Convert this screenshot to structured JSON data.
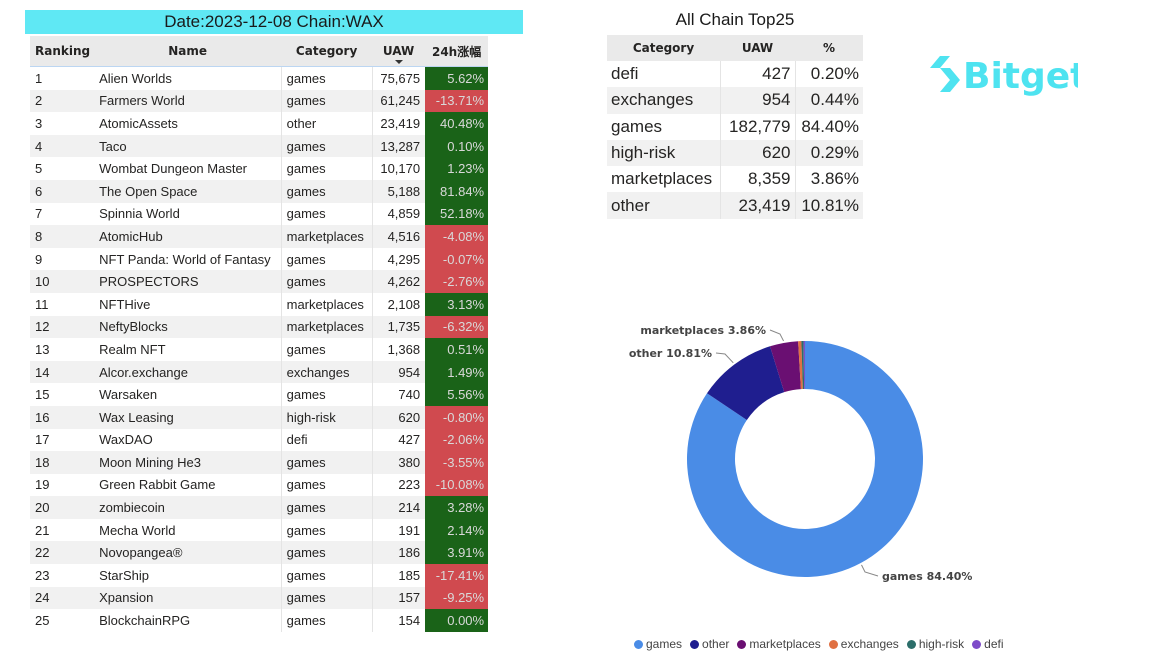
{
  "header": {
    "date_chain": "Date:2023-12-08 Chain:WAX"
  },
  "ranking_table": {
    "columns": [
      "Ranking",
      "Name",
      "Category",
      "UAW",
      "24h涨幅"
    ],
    "rows": [
      {
        "rank": "1",
        "name": "Alien Worlds",
        "category": "games",
        "uaw": "75,675",
        "change": "5.62%"
      },
      {
        "rank": "2",
        "name": "Farmers World",
        "category": "games",
        "uaw": "61,245",
        "change": "-13.71%"
      },
      {
        "rank": "3",
        "name": "AtomicAssets",
        "category": "other",
        "uaw": "23,419",
        "change": "40.48%"
      },
      {
        "rank": "4",
        "name": "Taco",
        "category": "games",
        "uaw": "13,287",
        "change": "0.10%"
      },
      {
        "rank": "5",
        "name": "Wombat Dungeon Master",
        "category": "games",
        "uaw": "10,170",
        "change": "1.23%"
      },
      {
        "rank": "6",
        "name": "The Open Space",
        "category": "games",
        "uaw": "5,188",
        "change": "81.84%"
      },
      {
        "rank": "7",
        "name": "Spinnia World",
        "category": "games",
        "uaw": "4,859",
        "change": "52.18%"
      },
      {
        "rank": "8",
        "name": "AtomicHub",
        "category": "marketplaces",
        "uaw": "4,516",
        "change": "-4.08%"
      },
      {
        "rank": "9",
        "name": "NFT Panda: World of Fantasy",
        "category": "games",
        "uaw": "4,295",
        "change": "-0.07%"
      },
      {
        "rank": "10",
        "name": "PROSPECTORS",
        "category": "games",
        "uaw": "4,262",
        "change": "-2.76%"
      },
      {
        "rank": "11",
        "name": "NFTHive",
        "category": "marketplaces",
        "uaw": "2,108",
        "change": "3.13%"
      },
      {
        "rank": "12",
        "name": "NeftyBlocks",
        "category": "marketplaces",
        "uaw": "1,735",
        "change": "-6.32%"
      },
      {
        "rank": "13",
        "name": "Realm NFT",
        "category": "games",
        "uaw": "1,368",
        "change": "0.51%"
      },
      {
        "rank": "14",
        "name": "Alcor.exchange",
        "category": "exchanges",
        "uaw": "954",
        "change": "1.49%"
      },
      {
        "rank": "15",
        "name": "Warsaken",
        "category": "games",
        "uaw": "740",
        "change": "5.56%"
      },
      {
        "rank": "16",
        "name": "Wax Leasing",
        "category": "high-risk",
        "uaw": "620",
        "change": "-0.80%"
      },
      {
        "rank": "17",
        "name": "WaxDAO",
        "category": "defi",
        "uaw": "427",
        "change": "-2.06%"
      },
      {
        "rank": "18",
        "name": "Moon Mining He3",
        "category": "games",
        "uaw": "380",
        "change": "-3.55%"
      },
      {
        "rank": "19",
        "name": "Green Rabbit Game",
        "category": "games",
        "uaw": "223",
        "change": "-10.08%"
      },
      {
        "rank": "20",
        "name": "zombiecoin",
        "category": "games",
        "uaw": "214",
        "change": "3.28%"
      },
      {
        "rank": "21",
        "name": "Mecha World",
        "category": "games",
        "uaw": "191",
        "change": "2.14%"
      },
      {
        "rank": "22",
        "name": "Novopangea®",
        "category": "games",
        "uaw": "186",
        "change": "3.91%"
      },
      {
        "rank": "23",
        "name": "StarShip",
        "category": "games",
        "uaw": "185",
        "change": "-17.41%"
      },
      {
        "rank": "24",
        "name": "Xpansion",
        "category": "games",
        "uaw": "157",
        "change": "-9.25%"
      },
      {
        "rank": "25",
        "name": "BlockchainRPG",
        "category": "games",
        "uaw": "154",
        "change": "0.00%"
      }
    ]
  },
  "category_summary": {
    "title": "All Chain Top25",
    "columns": [
      "Category",
      "UAW",
      "%"
    ],
    "rows": [
      {
        "category": "defi",
        "uaw": "427",
        "pct": "0.20%"
      },
      {
        "category": "exchanges",
        "uaw": "954",
        "pct": "0.44%"
      },
      {
        "category": "games",
        "uaw": "182,779",
        "pct": "84.40%"
      },
      {
        "category": "high-risk",
        "uaw": "620",
        "pct": "0.29%"
      },
      {
        "category": "marketplaces",
        "uaw": "8,359",
        "pct": "3.86%"
      },
      {
        "category": "other",
        "uaw": "23,419",
        "pct": "10.81%"
      }
    ]
  },
  "logo": {
    "text": "Bitget",
    "color": "#4ee3f0"
  },
  "colors": {
    "positive": "#1a6318",
    "negative": "#d04a4f",
    "banner": "#5fe8f4"
  },
  "chart_data": {
    "type": "pie",
    "title": "",
    "slices": [
      {
        "label": "games",
        "value": 84.4,
        "uaw": 182779,
        "color": "#4a8ce6",
        "callout": "games 84.40%"
      },
      {
        "label": "other",
        "value": 10.81,
        "uaw": 23419,
        "color": "#1f1e8f",
        "callout": "other 10.81%"
      },
      {
        "label": "marketplaces",
        "value": 3.86,
        "uaw": 8359,
        "color": "#6a0f72",
        "callout": "marketplaces 3.86%"
      },
      {
        "label": "exchanges",
        "value": 0.44,
        "uaw": 954,
        "color": "#e07042",
        "callout": ""
      },
      {
        "label": "high-risk",
        "value": 0.29,
        "uaw": 620,
        "color": "#2c6e6a",
        "callout": ""
      },
      {
        "label": "defi",
        "value": 0.2,
        "uaw": 427,
        "color": "#7e4cc9",
        "callout": ""
      }
    ],
    "legend": [
      "games",
      "other",
      "marketplaces",
      "exchanges",
      "high-risk",
      "defi"
    ],
    "legend_position": "bottom",
    "donut": true
  }
}
